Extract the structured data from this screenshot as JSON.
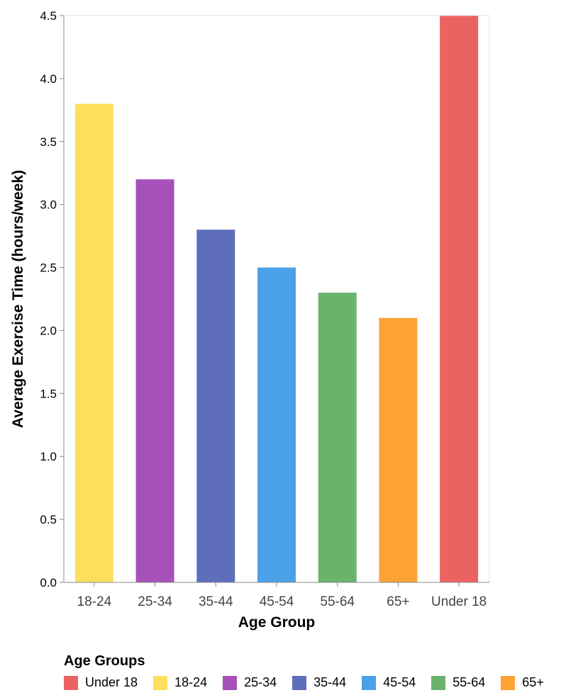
{
  "chart_data": {
    "type": "bar",
    "categories": [
      "18-24",
      "25-34",
      "35-44",
      "45-54",
      "55-64",
      "65+",
      "Under 18"
    ],
    "values": [
      3.8,
      3.2,
      2.8,
      2.5,
      2.3,
      2.1,
      4.5
    ],
    "colors": [
      "#FDDF5E",
      "#A551B9",
      "#5F6EBB",
      "#4BA1E7",
      "#6AB36D",
      "#FDA336",
      "#EB6361"
    ],
    "xlabel": "Age Group",
    "ylabel": "Average Exercise Time (hours/week)",
    "ylim": [
      0,
      4.5
    ],
    "yticks": [
      "0.0",
      "0.5",
      "1.0",
      "1.5",
      "2.0",
      "2.5",
      "3.0",
      "3.5",
      "4.0",
      "4.5"
    ],
    "grid": false,
    "legend": {
      "title": "Age Groups",
      "placement": "bottom",
      "entries": [
        {
          "label": "Under 18",
          "color": "#EB6361"
        },
        {
          "label": "18-24",
          "color": "#FDDF5E"
        },
        {
          "label": "25-34",
          "color": "#A551B9"
        },
        {
          "label": "35-44",
          "color": "#5F6EBB"
        },
        {
          "label": "45-54",
          "color": "#4BA1E7"
        },
        {
          "label": "55-64",
          "color": "#6AB36D"
        },
        {
          "label": "65+",
          "color": "#FDA336"
        }
      ]
    }
  }
}
